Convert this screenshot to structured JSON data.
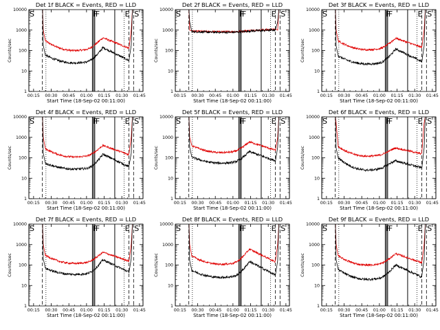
{
  "chart_data": {
    "type": "line",
    "series_names": [
      "Events",
      "LLD"
    ],
    "series_colors": {
      "Events": "#000000",
      "LLD": "#e00000"
    },
    "xlabel": "Start Time (18-Sep-02 00:11:00)",
    "ylabel": "Counts/sec",
    "x_ticks": [
      "00:15",
      "00:30",
      "00:45",
      "01:00",
      "01:15",
      "01:30",
      "01:45"
    ],
    "y_ticks": [
      "1",
      "10",
      "100",
      "1000",
      "10000"
    ],
    "xlim_minutes": [
      0,
      97
    ],
    "ylim": [
      1,
      10000
    ],
    "yscale": "log",
    "panels": [
      {
        "title": "Det 1f BLACK = Events, RED = LLD",
        "flags": [
          "S",
          "F",
          "F",
          "E",
          "S"
        ],
        "events": {
          "start": 60,
          "peak": 140,
          "min": 25
        },
        "lld": {
          "start": 300,
          "peak": 420,
          "min": 100,
          "hi_edge": 1000
        }
      },
      {
        "title": "Det 2f BLACK = Events, RED = LLD",
        "flags": [
          "S",
          "F",
          "F",
          "E",
          "S"
        ],
        "events": {
          "start": 850,
          "peak": 900,
          "min": 780
        },
        "lld": {
          "start": 900,
          "peak": 950,
          "min": 830,
          "hi_edge": 1000
        }
      },
      {
        "title": "Det 3f BLACK = Events, RED = LLD",
        "flags": [
          "S",
          "F",
          "F",
          "E",
          "S"
        ],
        "events": {
          "start": 55,
          "peak": 120,
          "min": 22
        },
        "lld": {
          "start": 300,
          "peak": 400,
          "min": 110,
          "hi_edge": 1000
        }
      },
      {
        "title": "Det 4f BLACK = Events, RED = LLD",
        "flags": [
          "S",
          "F",
          "F",
          "E",
          "S"
        ],
        "events": {
          "start": 55,
          "peak": 150,
          "min": 28
        },
        "lld": {
          "start": 280,
          "peak": 400,
          "min": 110,
          "hi_edge": 1000
        }
      },
      {
        "title": "Det 5f BLACK = Events, RED = LLD",
        "flags": [
          "S",
          "F",
          "F",
          "E",
          "S"
        ],
        "events": {
          "start": 110,
          "peak": 200,
          "min": 55
        },
        "lld": {
          "start": 400,
          "peak": 600,
          "min": 180,
          "hi_edge": 1000
        }
      },
      {
        "title": "Det 6f BLACK = Events, RED = LLD",
        "flags": [
          "S",
          "F",
          "F",
          "E",
          "S"
        ],
        "events": {
          "start": 100,
          "peak": 70,
          "min": 25
        },
        "lld": {
          "start": 350,
          "peak": 300,
          "min": 120,
          "hi_edge": 5000
        }
      },
      {
        "title": "Det 7f BLACK = Events, RED = LLD",
        "flags": [
          "S",
          "F",
          "F",
          "E",
          "S"
        ],
        "events": {
          "start": 70,
          "peak": 180,
          "min": 35
        },
        "lld": {
          "start": 300,
          "peak": 420,
          "min": 120,
          "hi_edge": 1000
        }
      },
      {
        "title": "Det 8f BLACK = Events, RED = LLD",
        "flags": [
          "S",
          "F",
          "F",
          "E",
          "S"
        ],
        "events": {
          "start": 55,
          "peak": 150,
          "min": 25
        },
        "lld": {
          "start": 280,
          "peak": 600,
          "min": 110,
          "hi_edge": 1000
        }
      },
      {
        "title": "Det 9f BLACK = Events, RED = LLD",
        "flags": [
          "S",
          "F",
          "F",
          "E",
          "S"
        ],
        "events": {
          "start": 60,
          "peak": 100,
          "min": 20
        },
        "lld": {
          "start": 280,
          "peak": 360,
          "min": 100,
          "hi_edge": 1000
        }
      }
    ]
  }
}
